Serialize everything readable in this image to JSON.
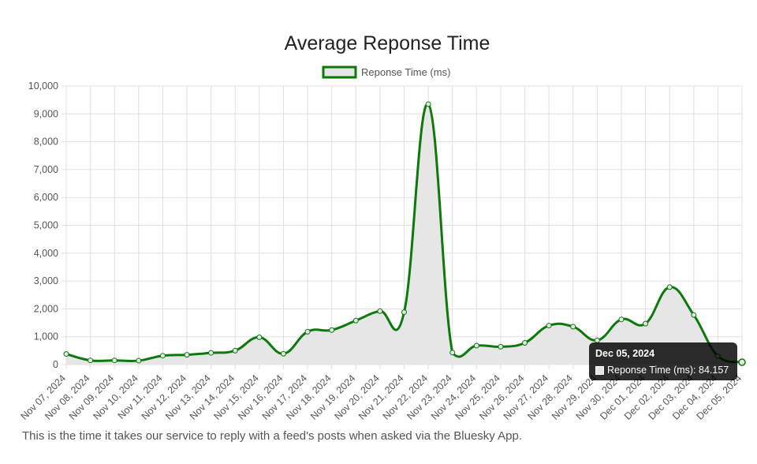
{
  "chart_data": {
    "type": "line",
    "title": "Average Reponse Time",
    "legend": {
      "position": "top",
      "label": "Reponse Time (ms)"
    },
    "categories": [
      "Nov 07, 2024",
      "Nov 08, 2024",
      "Nov 09, 2024",
      "Nov 10, 2024",
      "Nov 11, 2024",
      "Nov 12, 2024",
      "Nov 13, 2024",
      "Nov 14, 2024",
      "Nov 15, 2024",
      "Nov 16, 2024",
      "Nov 17, 2024",
      "Nov 18, 2024",
      "Nov 19, 2024",
      "Nov 20, 2024",
      "Nov 21, 2024",
      "Nov 22, 2024",
      "Nov 23, 2024",
      "Nov 24, 2024",
      "Nov 25, 2024",
      "Nov 26, 2024",
      "Nov 27, 2024",
      "Nov 28, 2024",
      "Nov 29, 2024",
      "Nov 30, 2024",
      "Dec 01, 2024",
      "Dec 02, 2024",
      "Dec 03, 2024",
      "Dec 04, 2024",
      "Dec 05, 2024"
    ],
    "series": [
      {
        "name": "Reponse Time (ms)",
        "values": [
          380,
          150,
          150,
          140,
          320,
          350,
          420,
          500,
          980,
          390,
          1180,
          1240,
          1580,
          1920,
          1880,
          9350,
          430,
          680,
          640,
          780,
          1400,
          1360,
          870,
          1620,
          1470,
          2780,
          1780,
          300,
          84.157
        ]
      }
    ],
    "ylim": [
      0,
      10000
    ],
    "yticks": [
      "0",
      "1,000",
      "2,000",
      "3,000",
      "4,000",
      "5,000",
      "6,000",
      "7,000",
      "8,000",
      "9,000",
      "10,000"
    ],
    "grid": true,
    "colors": {
      "line": "#0b7a0b",
      "fill": "#e6e6e6",
      "grid": "#e0e0e0"
    },
    "tooltip": {
      "title": "Dec 05, 2024",
      "label": "Reponse Time (ms): 84.157"
    }
  },
  "caption": "This is the time it takes our service to reply with a feed's posts when asked via the Bluesky App."
}
